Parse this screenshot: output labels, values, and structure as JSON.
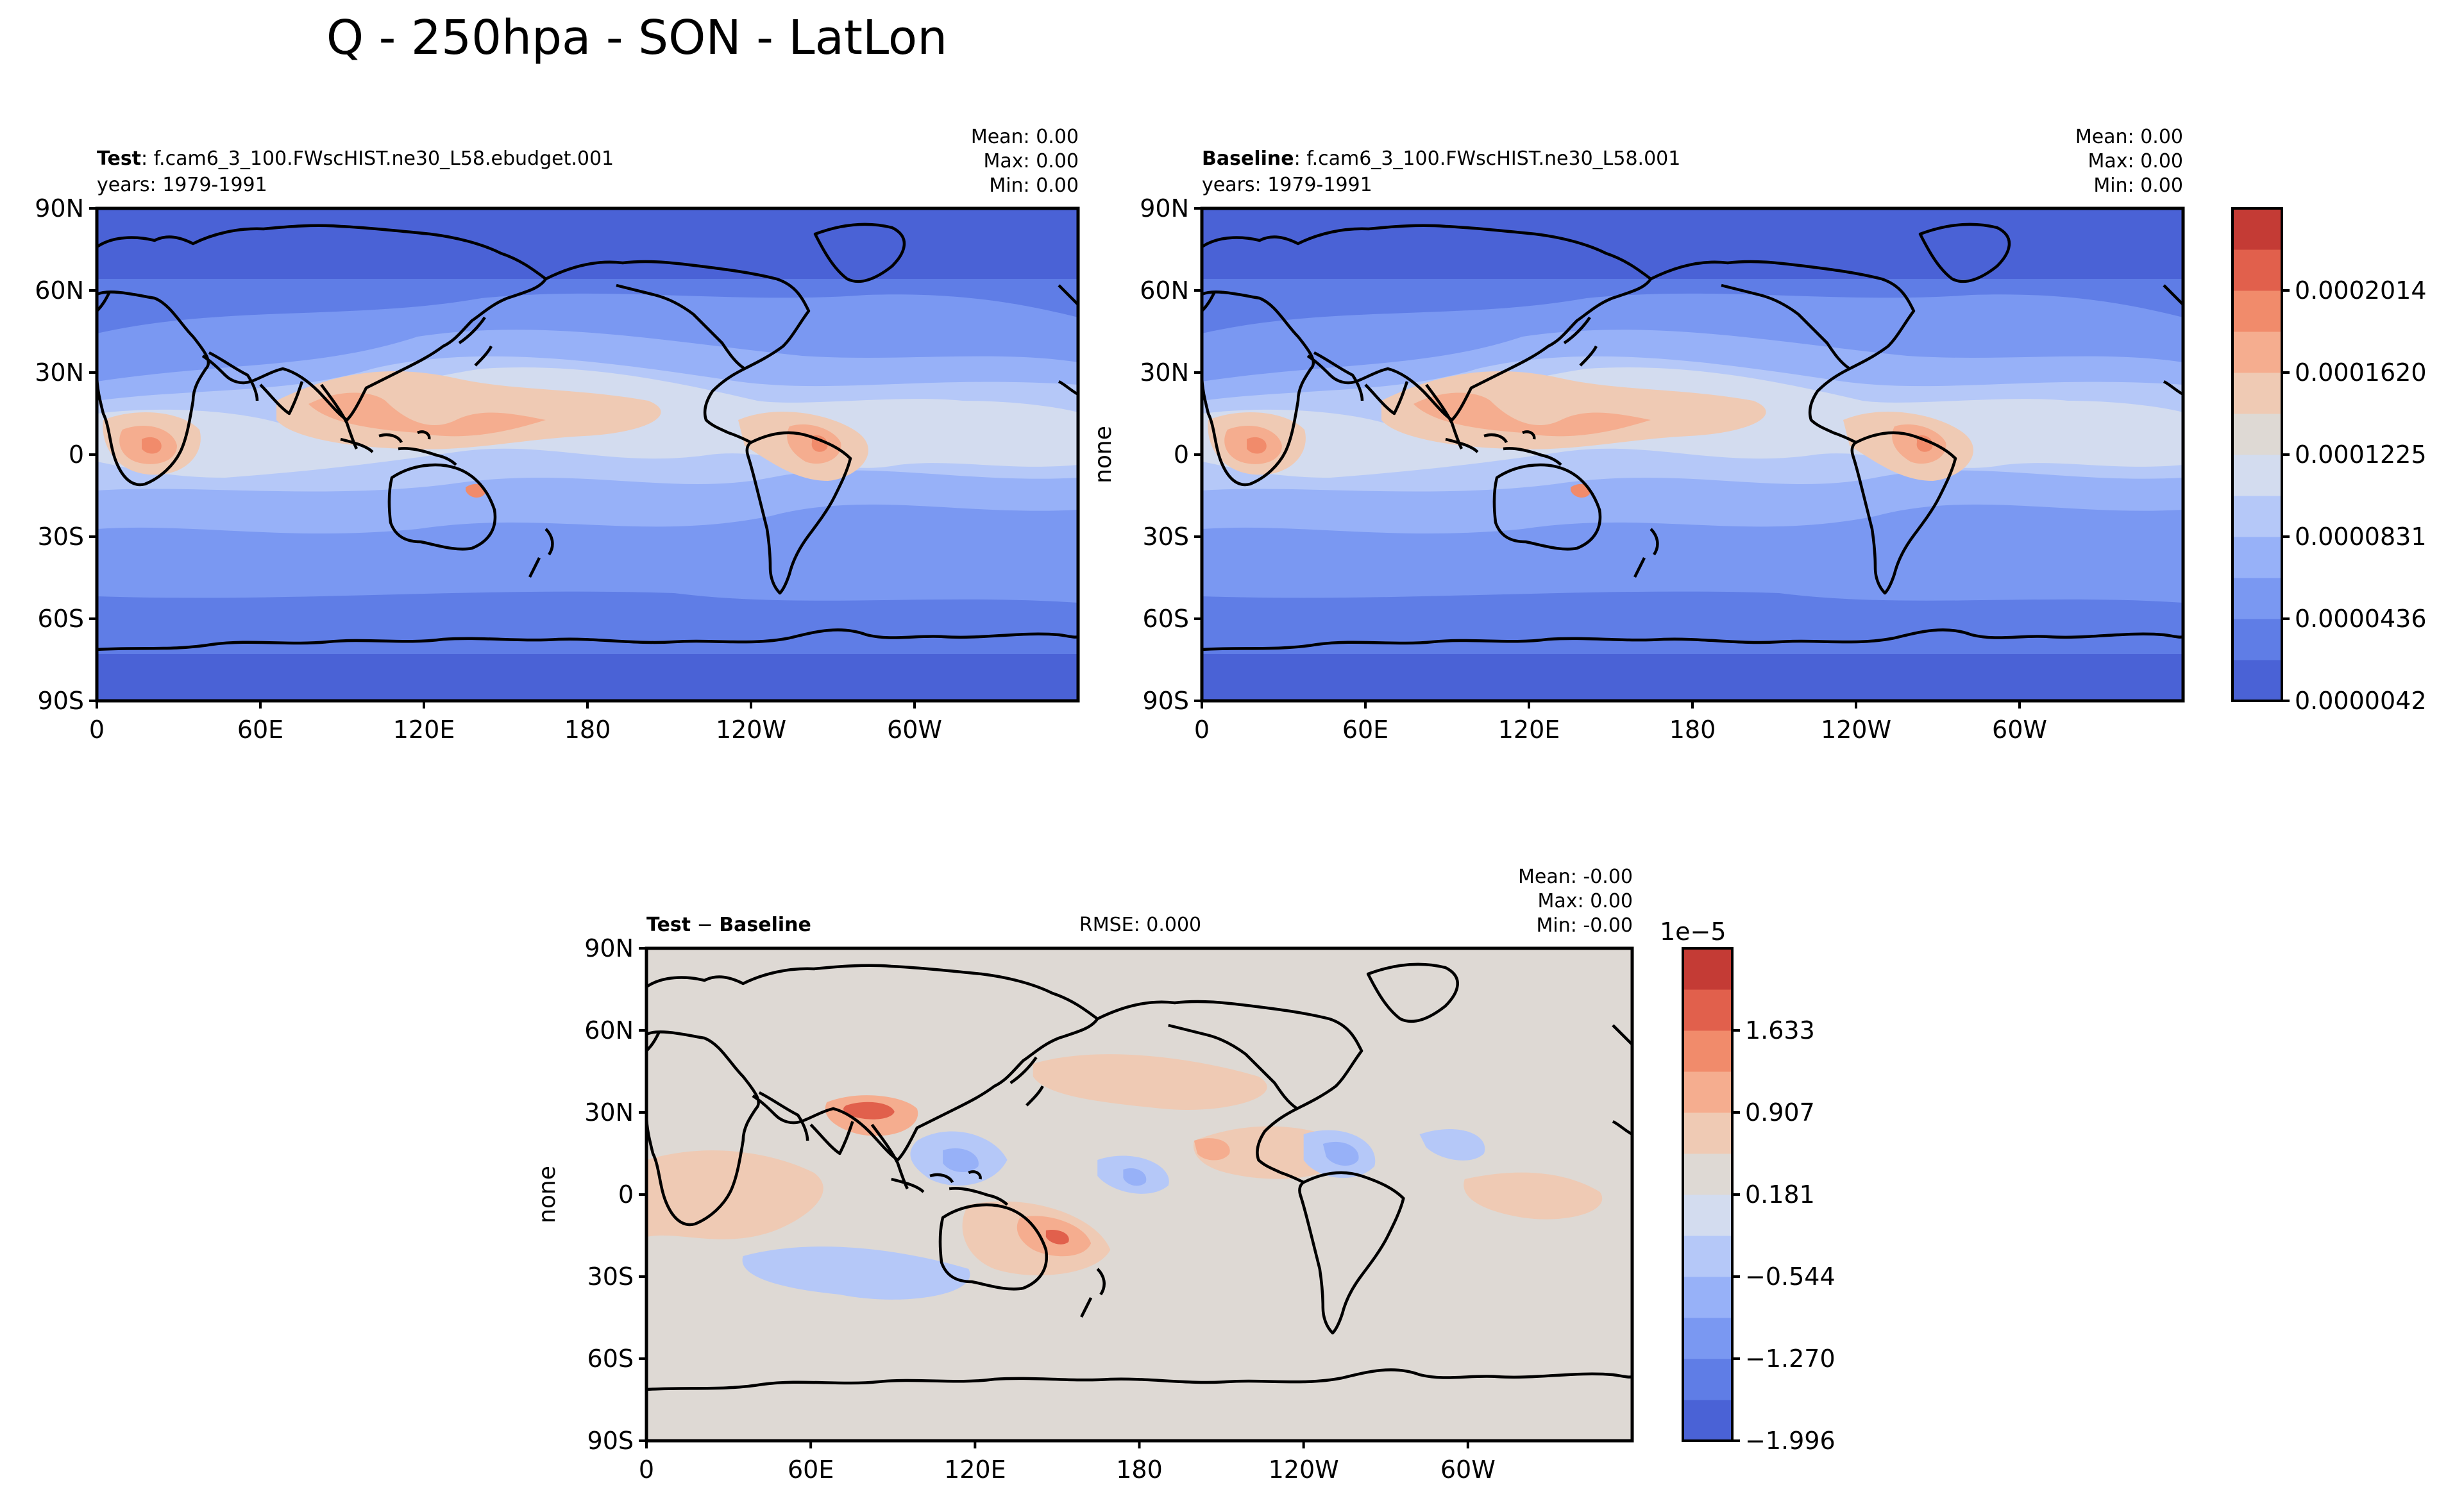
{
  "figure": {
    "title": "Q - 250hpa - SON - LatLon"
  },
  "colors": {
    "levels11": [
      "#4a62d6",
      "#5f7de6",
      "#7a98f2",
      "#97b1f8",
      "#b5c8f8",
      "#d3dcef",
      "#ded9d4",
      "#efcab4",
      "#f5ad8f",
      "#f18b6b",
      "#e1604c",
      "#c43b35"
    ],
    "coast": "#000000"
  },
  "chart_data": [
    {
      "type": "heatmap",
      "name": "test",
      "label_bold": "Test",
      "label_rest": ": f.cam6_3_100.FWscHIST.ne30_L58.ebudget.001",
      "years": "years: 1979-1991",
      "stats": [
        "Mean:  0.00",
        "Max:  0.00",
        "Min:  0.00"
      ],
      "ylabel": "",
      "xlim": [
        0,
        360
      ],
      "ylim": [
        -90,
        90
      ],
      "xticks": [
        "0",
        "60E",
        "120E",
        "180",
        "120W",
        "60W"
      ],
      "yticks": [
        "90N",
        "60N",
        "30N",
        "0",
        "30S",
        "60S",
        "90S"
      ]
    },
    {
      "type": "heatmap",
      "name": "baseline",
      "label_bold": "Baseline",
      "label_rest": ": f.cam6_3_100.FWscHIST.ne30_L58.001",
      "years": "years: 1979-1991",
      "stats": [
        "Mean:  0.00",
        "Max:  0.00",
        "Min:  0.00"
      ],
      "ylabel": "none",
      "xlim": [
        0,
        360
      ],
      "ylim": [
        -90,
        90
      ],
      "xticks": [
        "0",
        "60E",
        "120E",
        "180",
        "120W",
        "60W"
      ],
      "yticks": [
        "90N",
        "60N",
        "30N",
        "0",
        "30S",
        "60S",
        "90S"
      ],
      "colorbar": {
        "ticks": [
          "0.0002014",
          "0.0001620",
          "0.0001225",
          "0.0000831",
          "0.0000436",
          "0.0000042"
        ],
        "range": [
          4.2e-06,
          0.0002211
        ]
      }
    },
    {
      "type": "heatmap",
      "name": "difference",
      "label_bold": "Test",
      "label_mid": " − ",
      "label_bold2": "Baseline",
      "rmse": "RMSE: 0.000",
      "stats": [
        "Mean: -0.00",
        "Max:  0.00",
        "Min: -0.00"
      ],
      "ylabel": "none",
      "xlim": [
        0,
        360
      ],
      "ylim": [
        -90,
        90
      ],
      "xticks": [
        "0",
        "60E",
        "120E",
        "180",
        "120W",
        "60W"
      ],
      "yticks": [
        "90N",
        "60N",
        "30N",
        "0",
        "30S",
        "60S",
        "90S"
      ],
      "colorbar": {
        "offset": "1e−5",
        "ticks": [
          "1.633",
          "0.907",
          "0.181",
          "−0.544",
          "−1.270",
          "−1.996"
        ],
        "range": [
          -1.996,
          1.996
        ]
      }
    }
  ]
}
